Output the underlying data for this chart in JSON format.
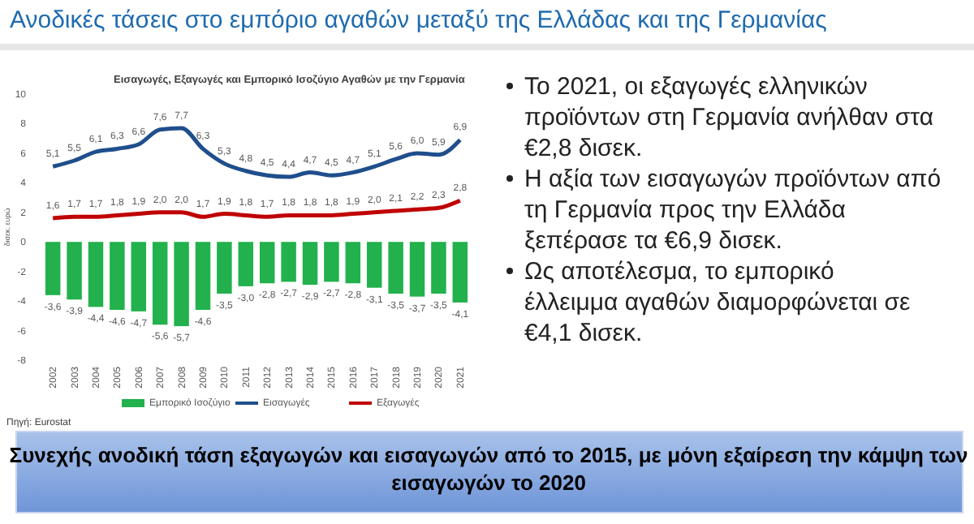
{
  "chart_data": {
    "type": "bar",
    "title": "Ανοδικές τάσεις στο εμπόριο αγαθών μεταξύ της Ελλάδας και της Γερμανίας",
    "subtitle": "Εισαγωγές, Εξαγωγές και Εμπορικό Ισοζύγιο Αγαθών με την Γερμανία",
    "ylabel": "δισεκ. ευρώ",
    "categories": [
      "2002",
      "2003",
      "2004",
      "2005",
      "2006",
      "2007",
      "2008",
      "2009",
      "2010",
      "2011",
      "2012",
      "2013",
      "2014",
      "2015",
      "2016",
      "2017",
      "2018",
      "2019",
      "2020",
      "2021"
    ],
    "series": [
      {
        "name": "Εμπορικό Ισοζύγιο",
        "color": "#22b14c",
        "values": [
          -3.6,
          -3.9,
          -4.4,
          -4.6,
          -4.7,
          -5.6,
          -5.7,
          -4.6,
          -3.5,
          -3.0,
          -2.8,
          -2.7,
          -2.9,
          -2.7,
          -2.8,
          -3.1,
          -3.5,
          -3.7,
          -3.5,
          -4.1
        ],
        "value_labels": [
          "-3,6",
          "-3,9",
          "-4,4",
          "-4,6",
          "-4,7",
          "-5,6",
          "-5,7",
          "-4,6",
          "-3,5",
          "-3,0",
          "-2,8",
          "-2,7",
          "-2,9",
          "-2,7",
          "-2,8",
          "-3,1",
          "-3,5",
          "-3,7",
          "-3,5",
          "-4,1"
        ]
      },
      {
        "name": "Εισαγωγές",
        "type": "line",
        "color": "#1f4e8c",
        "values": [
          5.1,
          5.5,
          6.1,
          6.3,
          6.6,
          7.6,
          7.7,
          6.3,
          5.3,
          4.8,
          4.5,
          4.4,
          4.7,
          4.5,
          4.7,
          5.1,
          5.6,
          6.0,
          5.9,
          6.9
        ],
        "value_labels": [
          "5,1",
          "5,5",
          "6,1",
          "6,3",
          "6,6",
          "7,6",
          "7,7",
          "6,3",
          "5,3",
          "4,8",
          "4,5",
          "4,4",
          "4,7",
          "4,5",
          "4,7",
          "5,1",
          "5,6",
          "6,0",
          "5,9",
          "6,9"
        ]
      },
      {
        "name": "Εξαγωγές",
        "type": "line",
        "color": "#c00000",
        "values": [
          1.6,
          1.7,
          1.7,
          1.8,
          1.9,
          2.0,
          2.0,
          1.7,
          1.9,
          1.8,
          1.7,
          1.8,
          1.8,
          1.8,
          1.9,
          2.0,
          2.1,
          2.2,
          2.3,
          2.8
        ],
        "value_labels": [
          "1,6",
          "1,7",
          "1,7",
          "1,8",
          "1,9",
          "2,0",
          "2,0",
          "1,7",
          "1,9",
          "1,8",
          "1,7",
          "1,8",
          "1,8",
          "1,8",
          "1,9",
          "2,0",
          "2,1",
          "2,2",
          "2,3",
          "2,8"
        ]
      }
    ],
    "ylim": [
      -8,
      10
    ],
    "yticks": [
      -8,
      -6,
      -4,
      -2,
      0,
      2,
      4,
      6,
      8,
      10
    ],
    "grid": false,
    "legend": "bottom",
    "marker": "none",
    "annotations": [
      "Πηγή: Eurostat",
      "Το 2021, οι εξαγωγές ελληνικών προϊόντων στη Γερμανία ανήλθαν στα €2,8 δισεκ.",
      "Η αξία των εισαγωγών προϊόντων από τη Γερμανία προς την Ελλάδα ξεπέρασε τα €6,9 δισεκ.",
      "Ως αποτέλεσμα, το εμπορικό έλλειμμα αγαθών διαμορφώνεται σε €4,1 δισεκ.",
      "Συνεχής ανοδική τάση εξαγωγών και εισαγωγών από το 2015, με μόνη εξαίρεση την κάμψη των εισαγωγών το 2020"
    ]
  }
}
